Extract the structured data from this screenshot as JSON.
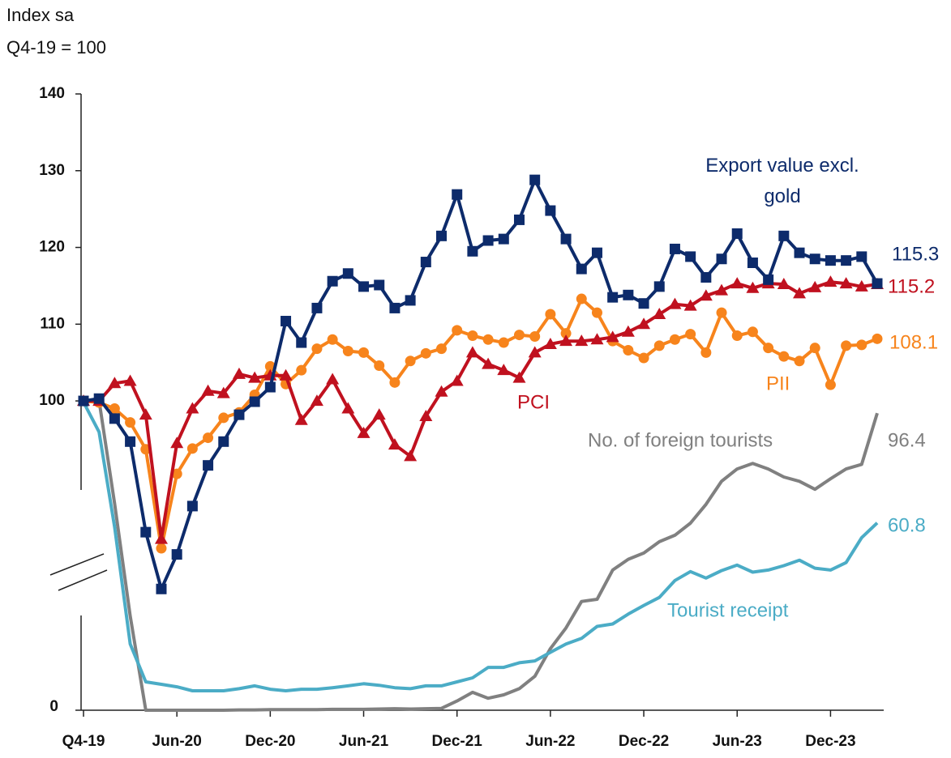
{
  "chart_data": {
    "type": "line",
    "title": "Index sa",
    "subtitle": "Q4-19 = 100",
    "categories": [
      "Q4-19",
      null,
      null,
      null,
      null,
      null,
      "Jun-20",
      null,
      null,
      null,
      null,
      null,
      "Dec-20",
      null,
      null,
      null,
      null,
      null,
      "Jun-21",
      null,
      null,
      null,
      null,
      null,
      "Dec-21",
      null,
      null,
      null,
      null,
      null,
      "Jun-22",
      null,
      null,
      null,
      null,
      null,
      "Dec-22",
      null,
      null,
      null,
      null,
      null,
      "Jun-23",
      null,
      null,
      null,
      null,
      null,
      "Dec-23",
      null,
      null,
      null
    ],
    "ylim": [
      59.7,
      140
    ],
    "yticks": [
      100,
      110,
      120,
      130,
      140
    ],
    "y2lim": [
      0,
      200
    ],
    "y2ticks": [
      0
    ],
    "axis_break": true,
    "series": [
      {
        "name": "Export value excl. gold",
        "color": "#0d2b6b",
        "marker": "square",
        "values": [
          100,
          100.3,
          97.7,
          94.7,
          82.9,
          75.5,
          80,
          86.3,
          91.6,
          94.7,
          98.2,
          99.9,
          101.8,
          110.4,
          107.6,
          112.1,
          115.6,
          116.6,
          114.9,
          115.1,
          112.1,
          113.1,
          118.1,
          121.5,
          126.9,
          119.5,
          120.9,
          121.1,
          123.6,
          128.8,
          124.8,
          121.1,
          117.2,
          119.3,
          113.5,
          113.8,
          112.7,
          114.9,
          119.8,
          118.8,
          116.1,
          118.5,
          121.8,
          118,
          115.8,
          121.5,
          119.3,
          118.5,
          118.3,
          118.3,
          118.8,
          115.3
        ]
      },
      {
        "name": "PCI",
        "color": "#c0111f",
        "marker": "triangle",
        "values": [
          100,
          100,
          102.3,
          102.6,
          98.2,
          82,
          94.5,
          99,
          101.3,
          101,
          103.5,
          103,
          103.3,
          103.3,
          97.5,
          100,
          102.8,
          99,
          95.8,
          98.2,
          94.3,
          92.8,
          98,
          101.2,
          102.6,
          106.3,
          104.8,
          104,
          103,
          106.3,
          107.4,
          107.8,
          107.8,
          108,
          108.3,
          109,
          110,
          111.3,
          112.6,
          112.4,
          113.7,
          114.4,
          115.3,
          114.7,
          115.3,
          115.2,
          114,
          114.8,
          115.5,
          115.3,
          114.9,
          115.2
        ]
      },
      {
        "name": "PII",
        "color": "#f7841c",
        "marker": "circle",
        "values": [
          100,
          99.8,
          99,
          97.2,
          93.7,
          80.8,
          90.5,
          93.8,
          95.2,
          97.8,
          98.5,
          100.8,
          104.5,
          102.2,
          104,
          106.8,
          108,
          106.5,
          106.3,
          104.6,
          102.4,
          105.2,
          106.2,
          106.8,
          109.2,
          108.5,
          108,
          107.6,
          108.6,
          108.4,
          111.3,
          108.8,
          113.3,
          111.5,
          107.8,
          106.6,
          105.6,
          107.2,
          108,
          108.7,
          106.3,
          111.5,
          108.5,
          109,
          106.9,
          105.8,
          105.2,
          106.9,
          102.1,
          107.2,
          107.3,
          108.1
        ]
      },
      {
        "name": "No. of foreign tourists",
        "color": "#808080",
        "axis": "y2",
        "values": [
          100,
          100.5,
          67,
          30.6,
          0,
          0,
          0,
          0,
          0,
          0,
          0.1,
          0.1,
          0.2,
          0.2,
          0.2,
          0.2,
          0.3,
          0.3,
          0.3,
          0.4,
          0.5,
          0.4,
          0.5,
          0.6,
          3,
          5.8,
          3.9,
          5,
          7,
          11,
          20,
          26.7,
          35.3,
          36,
          45.5,
          49,
          51,
          54.7,
          56.8,
          60.7,
          66.8,
          74.3,
          78.3,
          80.1,
          78.3,
          75.7,
          74.3,
          71.7,
          75.1,
          78.3,
          79.8,
          96.4
        ]
      },
      {
        "name": "Tourist receipt",
        "color": "#4bacc6",
        "axis": "y2",
        "values": [
          100,
          90.3,
          59.4,
          21.5,
          9.2,
          8.4,
          7.6,
          6.3,
          6.3,
          6.3,
          7,
          7.9,
          6.8,
          6.3,
          6.8,
          6.8,
          7.3,
          7.9,
          8.6,
          8.1,
          7.3,
          7,
          7.9,
          7.9,
          9.2,
          10.5,
          13.9,
          13.9,
          15.4,
          16,
          18.8,
          21.5,
          23.3,
          27.2,
          28,
          31.2,
          34,
          36.6,
          42.1,
          45,
          42.9,
          45.3,
          47.1,
          44.8,
          45.5,
          46.9,
          48.7,
          46.1,
          45.5,
          47.9,
          56,
          60.8
        ]
      }
    ]
  }
}
